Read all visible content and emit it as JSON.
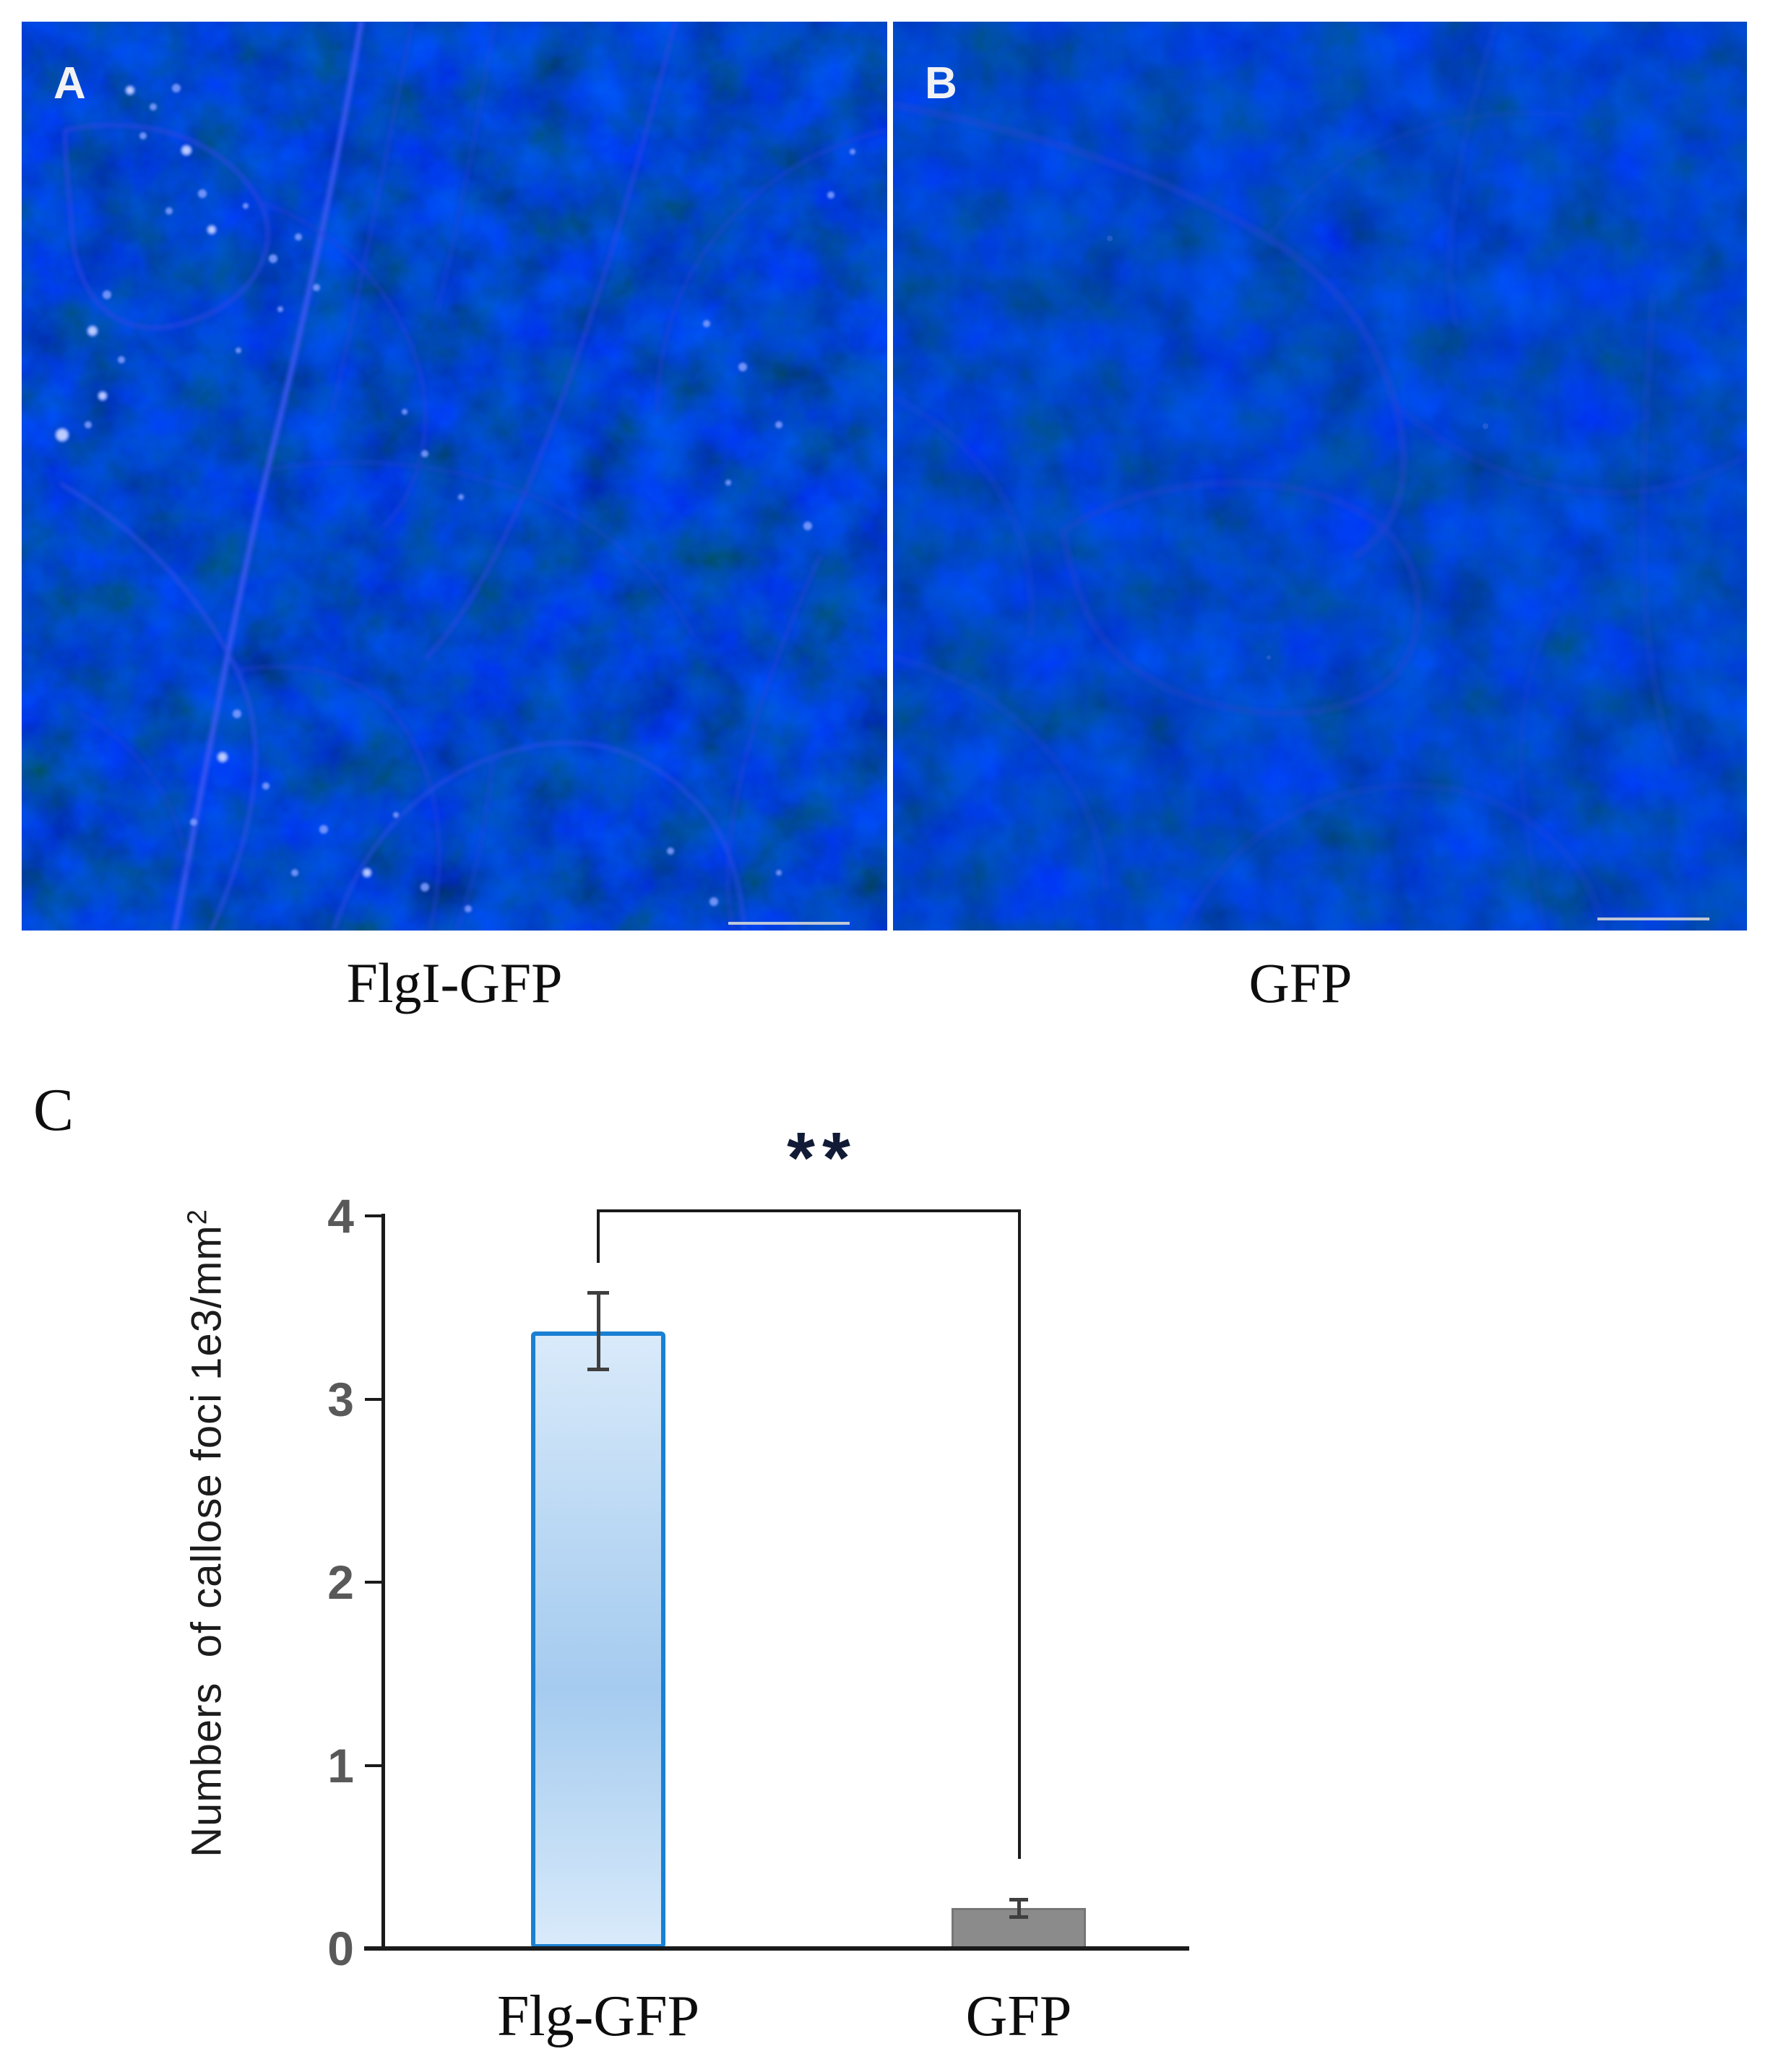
{
  "panels": {
    "a": {
      "label": "A",
      "caption": "FlgI-GFP",
      "scale_bar": true
    },
    "b": {
      "label": "B",
      "caption": "GFP",
      "scale_bar": true
    }
  },
  "panel_c": {
    "label": "C"
  },
  "chart_data": {
    "type": "bar",
    "categories": [
      "Flg-GFP",
      "GFP"
    ],
    "values": [
      3.37,
      0.22
    ],
    "errors": [
      0.21,
      0.05
    ],
    "ylabel": "Numbers of callose foci 1e3/mm^2",
    "ylabel_text": "Numbers  of callose foci 1e3/mm",
    "ylabel_superscript": "2",
    "xlabel": "",
    "yticks": [
      0,
      1,
      2,
      3,
      4
    ],
    "ylim": [
      0,
      4
    ],
    "grid": false,
    "legend": "none",
    "significance": {
      "label": "**",
      "compares": [
        "Flg-GFP",
        "GFP"
      ]
    },
    "colors": {
      "bar_flg_fill_light": "#d9eafa",
      "bar_flg_fill_mid": "#a5cbef",
      "bar_flg_border": "#1a80d2",
      "bar_gfp_fill": "#8b8b8b",
      "bar_gfp_border": "#767676",
      "axis": "#1a1a1a",
      "tick_label": "#595959",
      "error_bar": "#3f3f3f"
    }
  }
}
